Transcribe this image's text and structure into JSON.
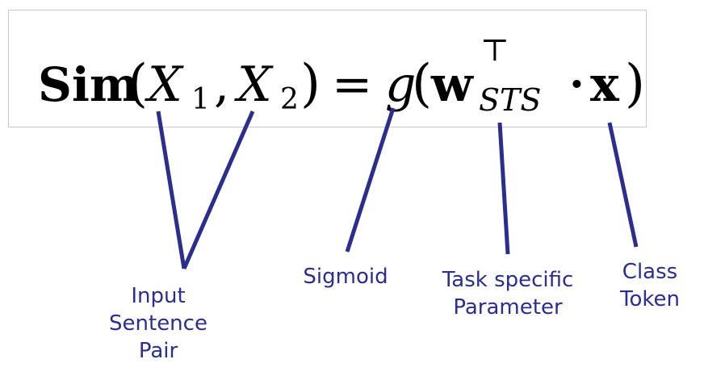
{
  "accent_color": "#2b2e8c",
  "formula": {
    "sim": "Sim",
    "open_paren": "(",
    "x_letter": "X",
    "sub_1": "1",
    "comma": ",",
    "sub_2": "2",
    "close_paren": ")",
    "equals": "=",
    "g": "g",
    "open_paren_2": "(",
    "w": "w",
    "transpose": "⊤",
    "sub_sts": "STS",
    "dot": "·",
    "x_bold": "x",
    "close_paren_2": ")"
  },
  "labels": {
    "input_pair": [
      "Input",
      "Sentence",
      "Pair"
    ],
    "sigmoid": [
      "Sigmoid"
    ],
    "task_param": [
      "Task specific",
      "Parameter"
    ],
    "class_token": [
      "Class",
      "Token"
    ]
  }
}
